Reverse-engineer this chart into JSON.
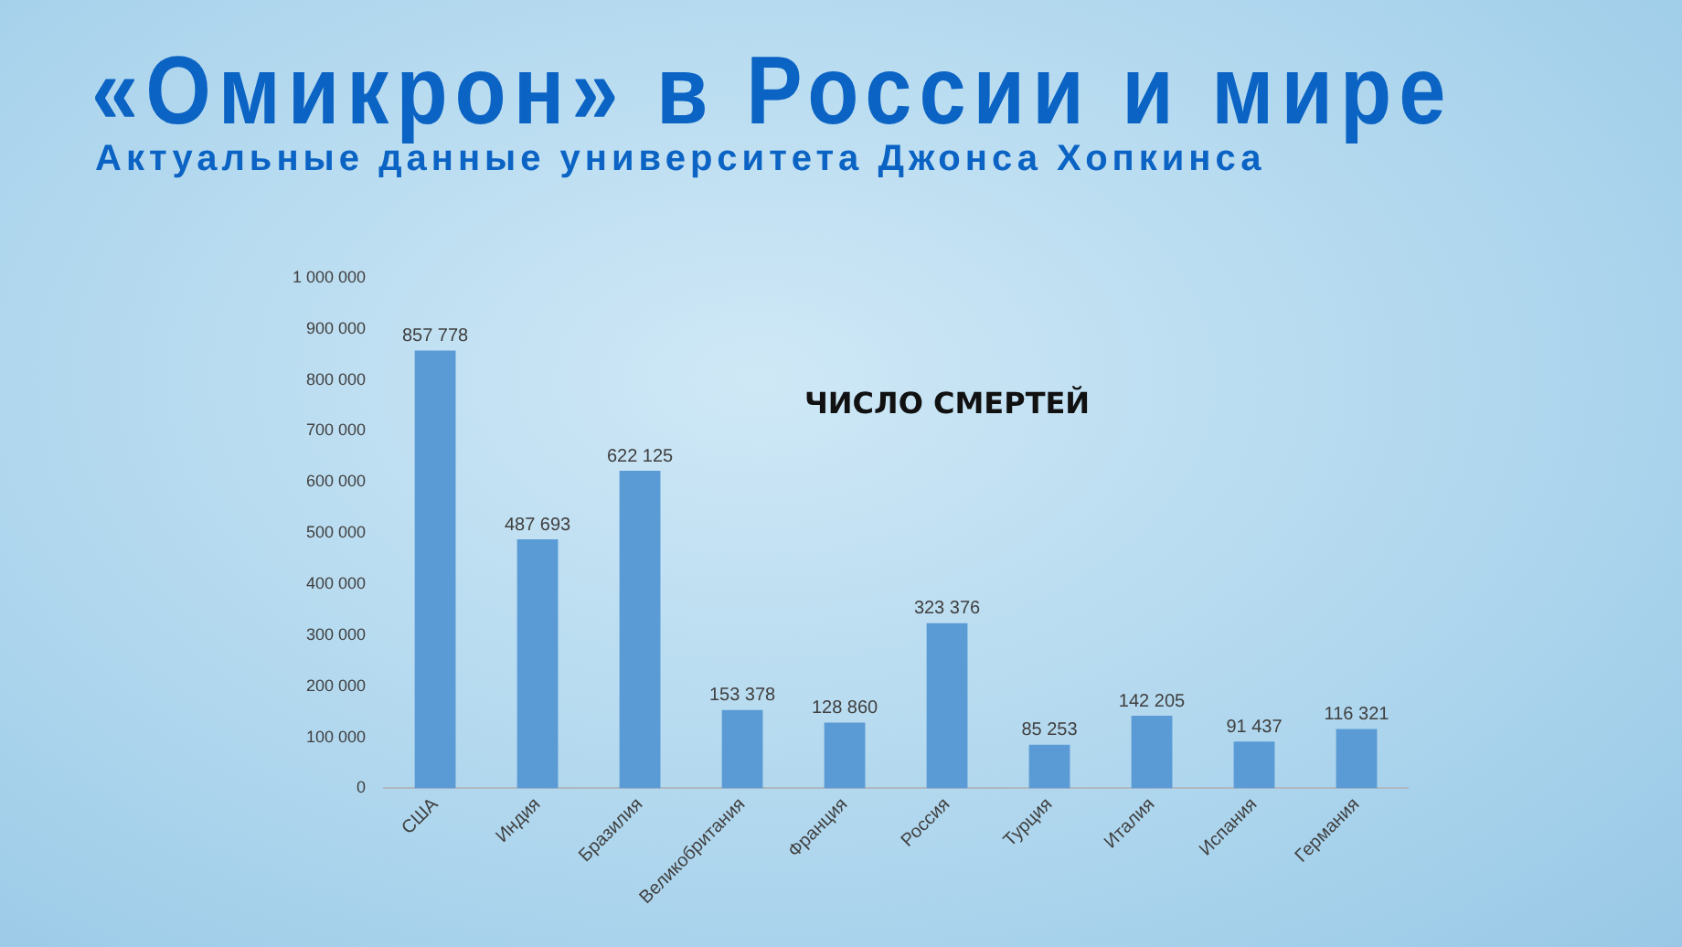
{
  "chart_data": {
    "type": "bar",
    "title": "«Омикрон» в России и мире",
    "subtitle": "Актуальные данные университета Джонса Хопкинса",
    "annotations": [
      "ЧИСЛО СМЕРТЕЙ"
    ],
    "categories": [
      "США",
      "Индия",
      "Бразилия",
      "Великобритания",
      "Франция",
      "Россия",
      "Турция",
      "Италия",
      "Испания",
      "Германия"
    ],
    "values": [
      857778,
      487693,
      622125,
      153378,
      128860,
      323376,
      85253,
      142205,
      91437,
      116321
    ],
    "value_labels": [
      "857 778",
      "487 693",
      "622 125",
      "153 378",
      "128 860",
      "323 376",
      "85 253",
      "142 205",
      "91 437",
      "116 321"
    ],
    "color": "#5b9bd5",
    "ylim": [
      0,
      1000000
    ],
    "yticks": [
      {
        "value": 0,
        "label": "0"
      },
      {
        "value": 100000,
        "label": "100 000"
      },
      {
        "value": 200000,
        "label": "200 000"
      },
      {
        "value": 300000,
        "label": "300 000"
      },
      {
        "value": 400000,
        "label": "400 000"
      },
      {
        "value": 500000,
        "label": "500 000"
      },
      {
        "value": 600000,
        "label": "600 000"
      },
      {
        "value": 700000,
        "label": "700 000"
      },
      {
        "value": 800000,
        "label": "800 000"
      },
      {
        "value": 900000,
        "label": "900 000"
      },
      {
        "value": 1000000,
        "label": "1 000 000"
      }
    ],
    "grid": false,
    "legend": false
  }
}
